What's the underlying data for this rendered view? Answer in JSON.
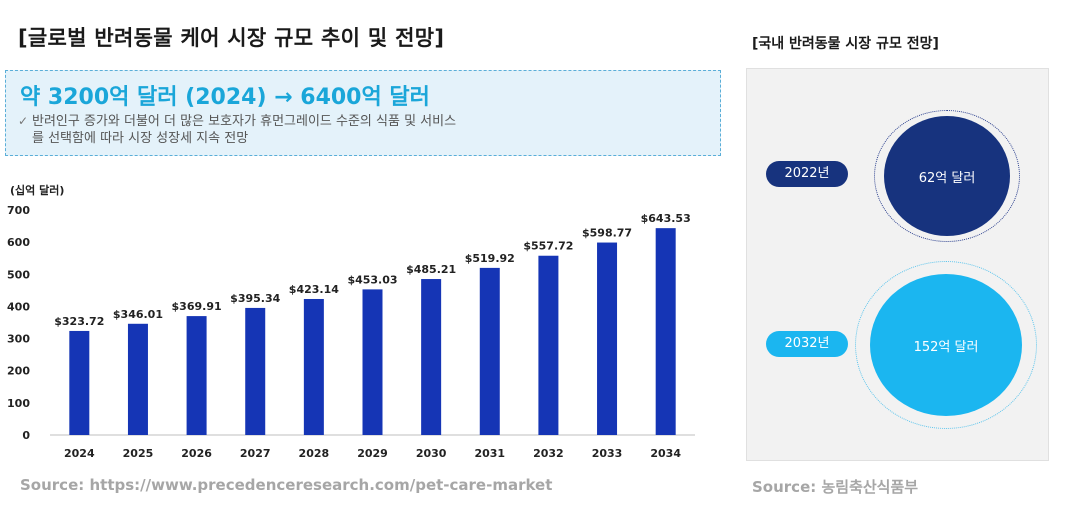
{
  "title": "[글로벌 반려동물 케어 시장 규모 추이 및 전망]",
  "callout": {
    "headline": "약 3200억 달러 (2024) → 6400억 달러",
    "bullet_line1": "반려인구 증가와 더불어 더 많은 보호자가 휴먼그레이드 수준의 식품 및 서비스",
    "bullet_line2": "를 선택함에 따라 시장 성장세 지속 전망"
  },
  "chart_data": {
    "type": "bar",
    "unit_label": "(십억 달러)",
    "categories": [
      "2024",
      "2025",
      "2026",
      "2027",
      "2028",
      "2029",
      "2030",
      "2031",
      "2032",
      "2033",
      "2034"
    ],
    "values": [
      323.72,
      346.01,
      369.91,
      395.34,
      423.14,
      453.03,
      485.21,
      519.92,
      557.72,
      598.77,
      643.53
    ],
    "data_labels": [
      "$323.72",
      "$346.01",
      "$369.91",
      "$395.34",
      "$423.14",
      "$453.03",
      "$485.21",
      "$519.92",
      "$557.72",
      "$598.77",
      "$643.53"
    ],
    "yticks": [
      0,
      100,
      200,
      300,
      400,
      500,
      600,
      700
    ],
    "ylim": [
      0,
      700
    ],
    "bar_color": "#1535b5",
    "grid": false,
    "legend": "none"
  },
  "source_left": "Source: https://www.precedenceresearch.com/pet-care-market",
  "right": {
    "title": "[국내 반려동물 시장 규모 전망]",
    "items": [
      {
        "year": "2022년",
        "value": "62억 달러",
        "color": "#17337e"
      },
      {
        "year": "2032년",
        "value": "152억 달러",
        "color": "#1bb6f0"
      }
    ],
    "source": "Source: 농림축산식품부"
  }
}
